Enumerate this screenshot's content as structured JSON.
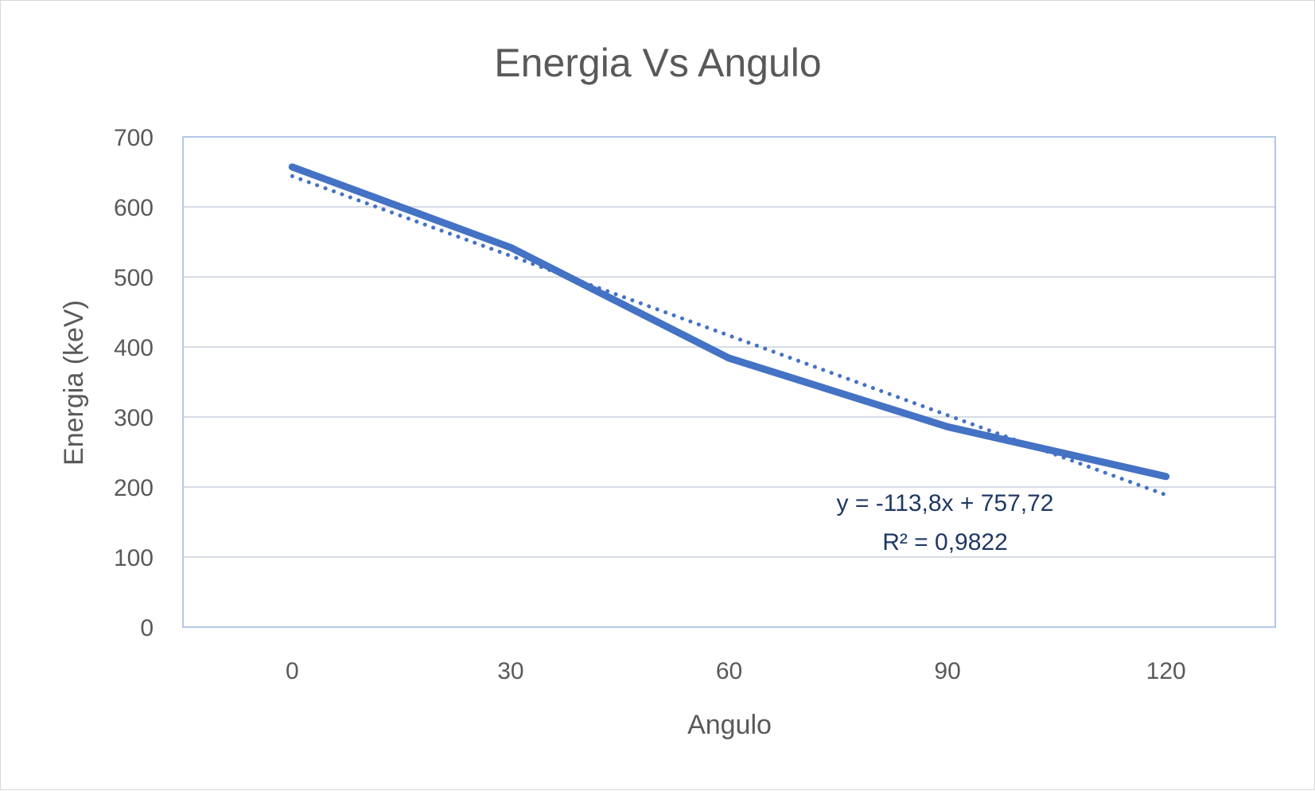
{
  "chart_data": {
    "type": "line",
    "title": "Energia Vs Angulo",
    "xlabel": "Angulo",
    "ylabel": "Energia (keV)",
    "categories": [
      "0",
      "30",
      "60",
      "90",
      "120"
    ],
    "series": [
      {
        "values": [
          657,
          542,
          384,
          286,
          215
        ],
        "color": "#4472c4",
        "style": "solid"
      }
    ],
    "trendline": {
      "type": "linear",
      "style": "dotted",
      "color": "#4472c4",
      "slope": -113.8,
      "intercept": 757.72,
      "equation": "y = -113,8x + 757,72",
      "r_squared": "R² = 0,9822"
    },
    "ylim": [
      0,
      700
    ],
    "yticks": [
      "0",
      "100",
      "200",
      "300",
      "400",
      "500",
      "600",
      "700"
    ],
    "grid": true,
    "gridline_color": "#d6dce5",
    "plot_border_color": "#b4c7e7"
  }
}
